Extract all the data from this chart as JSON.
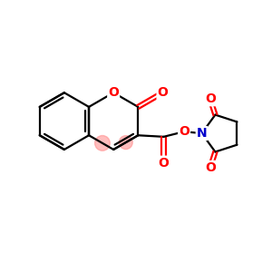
{
  "bg_color": "#ffffff",
  "bond_color": "#000000",
  "o_color": "#ff0000",
  "n_color": "#0000cc",
  "lw": 1.6,
  "fs": 10,
  "figsize": [
    3.0,
    3.0
  ],
  "dpi": 100,
  "xlim": [
    0,
    10
  ],
  "ylim": [
    0,
    10
  ]
}
